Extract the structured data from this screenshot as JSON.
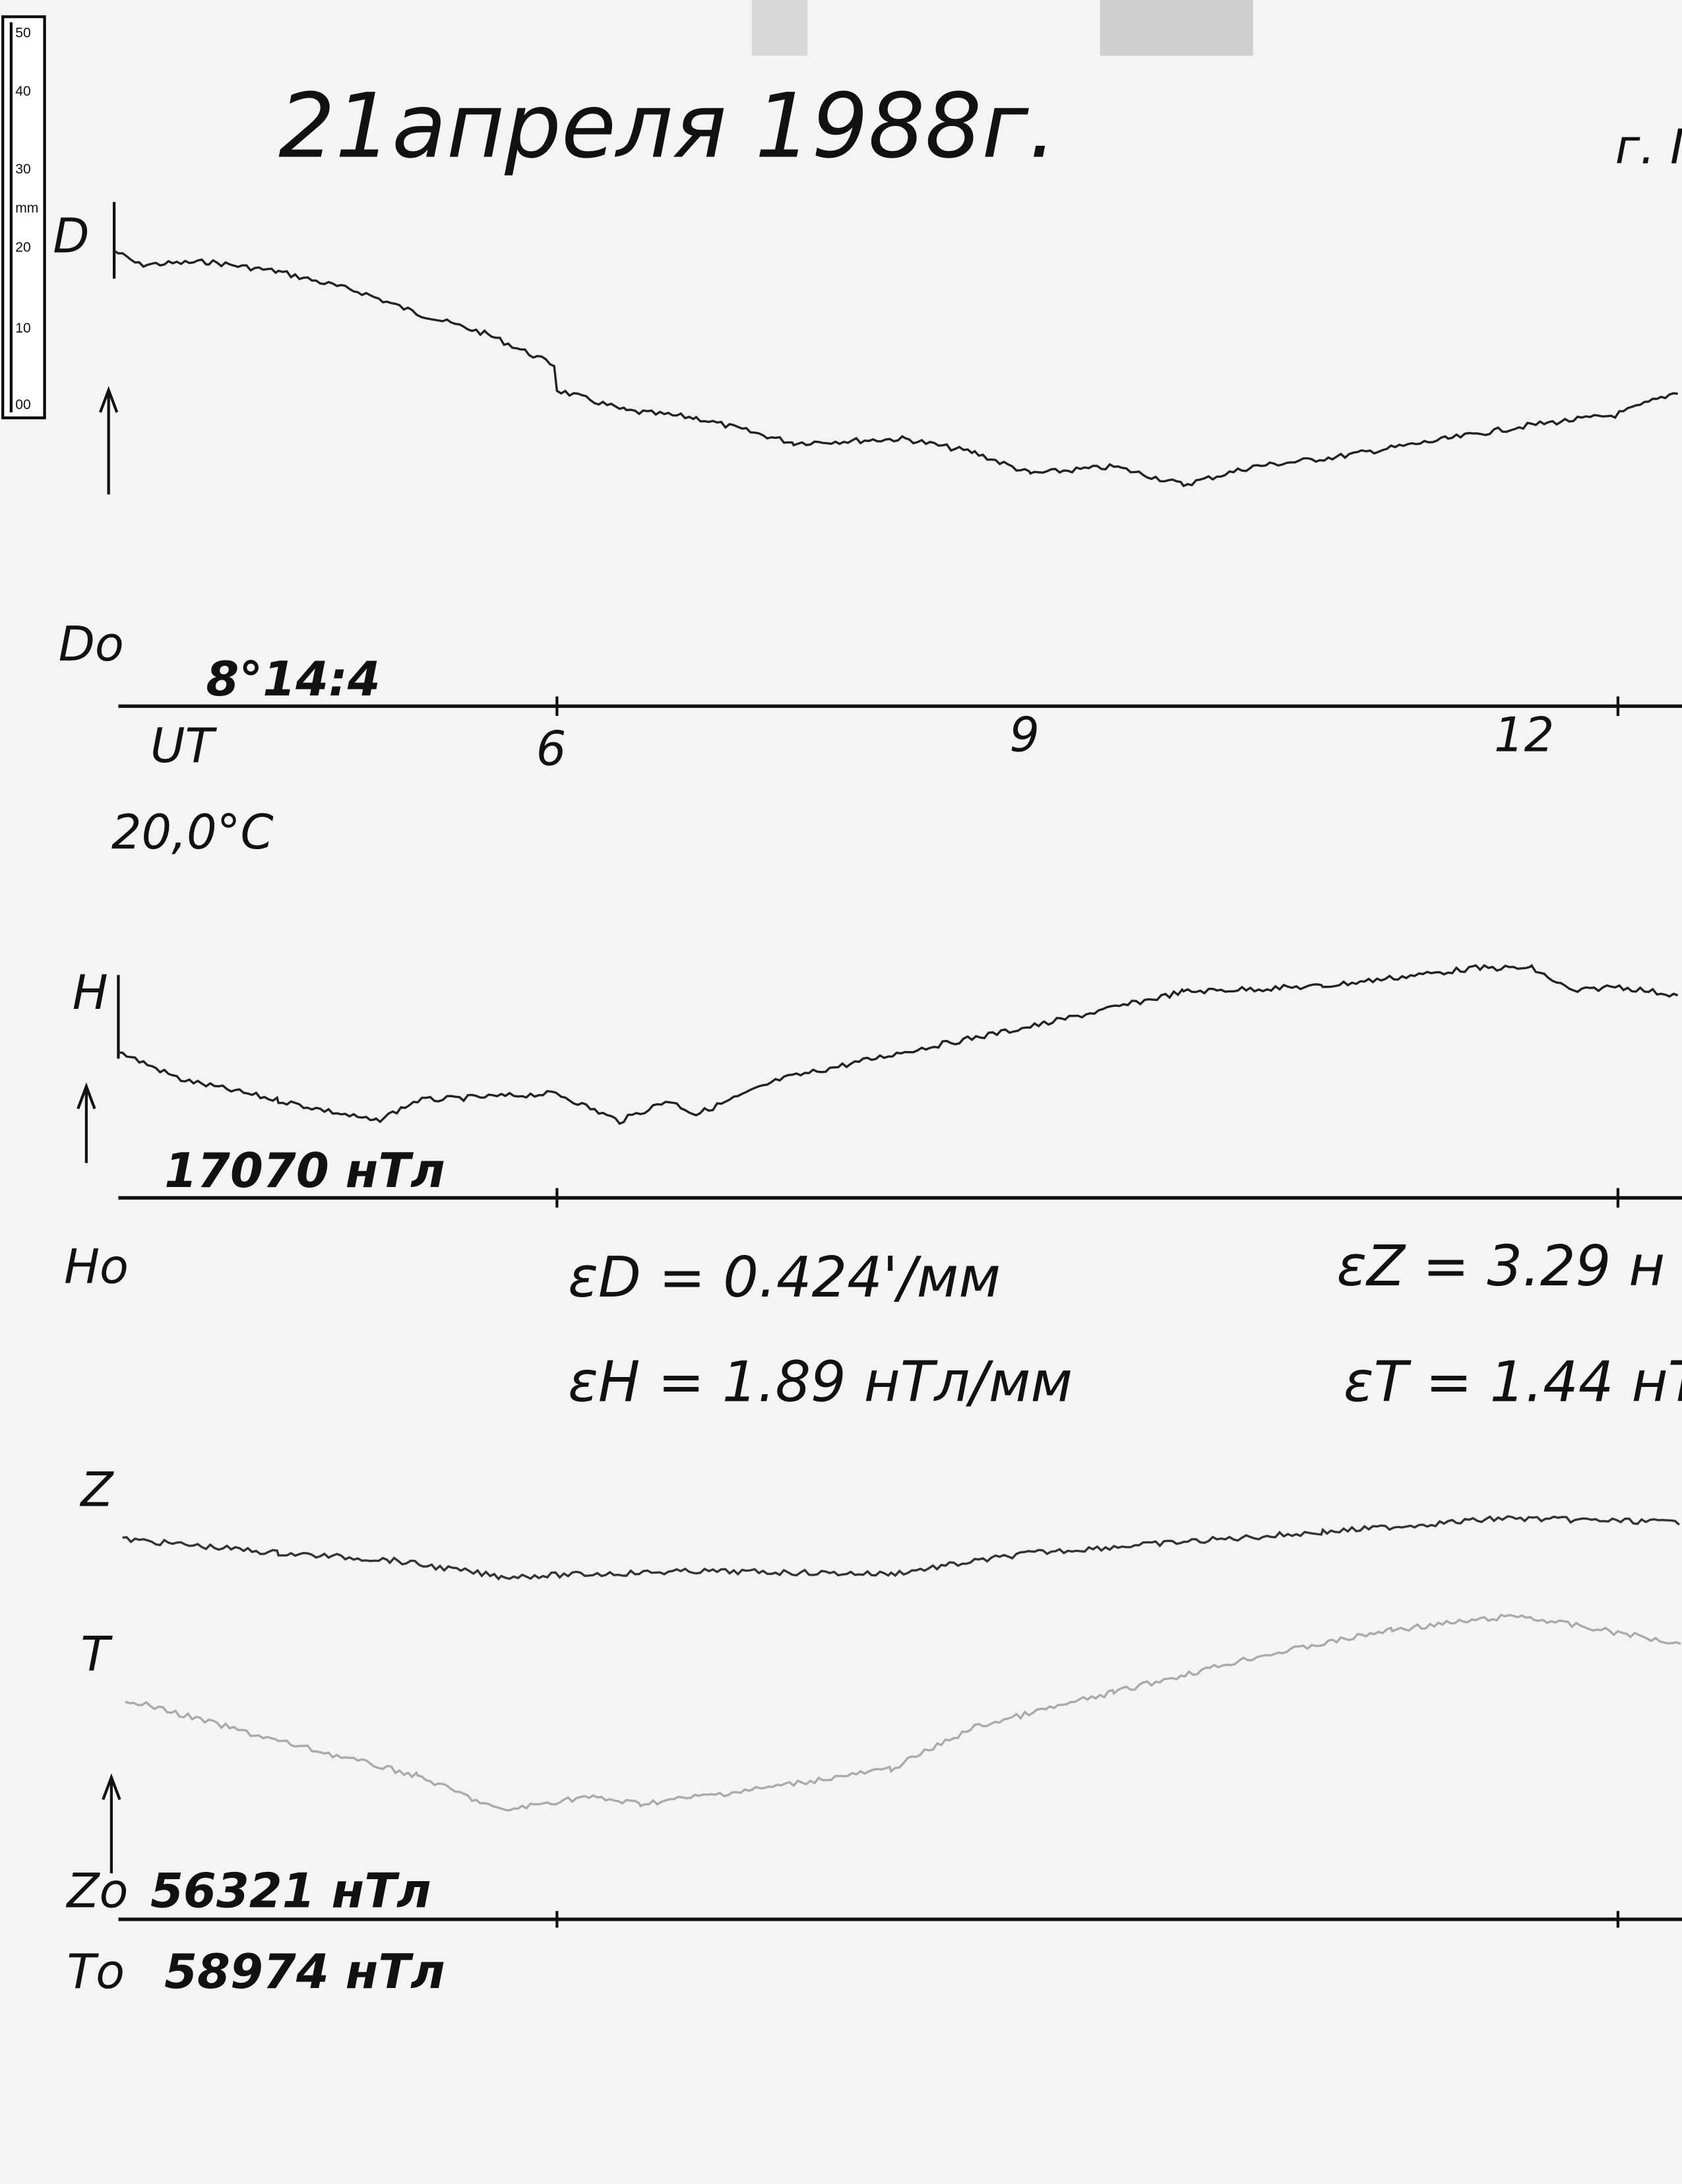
{
  "header": {
    "date": "21апреля 1988г.",
    "place": "г. I"
  },
  "ruler": {
    "marks": [
      "50",
      "40",
      "30",
      "20",
      "10",
      "00"
    ],
    "unit": "mm"
  },
  "traces": {
    "d": {
      "label": "D",
      "base_label": "Dо",
      "base_value": "8°14:4"
    },
    "h": {
      "label": "H",
      "base_label": "Hо",
      "base_value": "17070 нТл"
    },
    "z": {
      "label": "Z",
      "base_label": "Zо",
      "base_value": "56321 нТл"
    },
    "t": {
      "label": "T",
      "base_label": "Tо",
      "base_value": "58974 нТл"
    }
  },
  "time_axis": {
    "label": "UT",
    "hours": [
      "6",
      "9",
      "12"
    ]
  },
  "temperature": "20,0°C",
  "scale_factors": [
    "εD = 0.424'/мм",
    "εH = 1.89 нТл/мм",
    "εZ = 3.29 н",
    "εT = 1.44 нТ"
  ]
}
